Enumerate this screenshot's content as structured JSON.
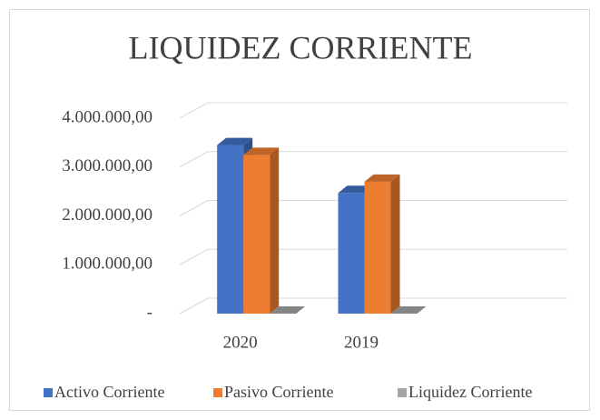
{
  "chart_data": {
    "type": "bar3d",
    "title": "LIQUIDEZ CORRIENTE",
    "categories": [
      "2020",
      "2019",
      null
    ],
    "series": [
      {
        "name": "Activo Corriente",
        "color": "#4472c4",
        "values": [
          3450000,
          2470000,
          null
        ]
      },
      {
        "name": "Pasivo Corriente",
        "color": "#ed7d31",
        "values": [
          3250000,
          2700000,
          null
        ]
      },
      {
        "name": "Liquidez Corriente",
        "color": "#a5a5a5",
        "values": [
          1.06,
          0.91,
          null
        ]
      }
    ],
    "ylim": [
      0,
      4000000
    ],
    "yticks": [
      {
        "value": 0,
        "label": "-"
      },
      {
        "value": 1000000,
        "label": "1.000.000,00"
      },
      {
        "value": 2000000,
        "label": "2.000.000,00"
      },
      {
        "value": 3000000,
        "label": "3.000.000,00"
      },
      {
        "value": 4000000,
        "label": "4.000.000,00"
      }
    ],
    "grid": true,
    "legend": "bottom"
  }
}
